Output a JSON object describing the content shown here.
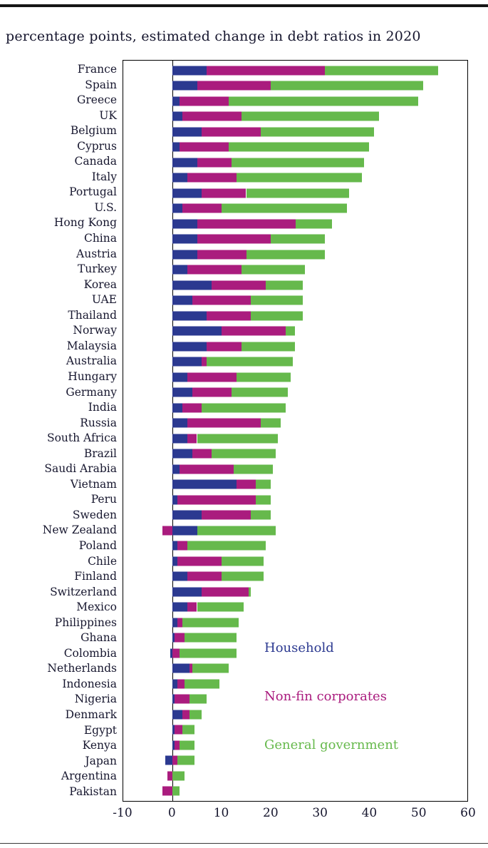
{
  "page": {
    "title": "percentage points, estimated change in debt ratios in 2020"
  },
  "chart_data": {
    "type": "bar",
    "orientation": "horizontal",
    "stacked": true,
    "title": "percentage points, estimated change in debt ratios in 2020",
    "xlabel": "",
    "ylabel": "",
    "xlim": [
      -10,
      60
    ],
    "x_ticks": [
      -10,
      0,
      10,
      20,
      30,
      40,
      50,
      60
    ],
    "grid": false,
    "legend_position": "inside-lower-right",
    "legend": [
      {
        "label": "Household",
        "color": "#2b3990"
      },
      {
        "label": "Non-fin corporates",
        "color": "#aa1c7e"
      },
      {
        "label": "General government",
        "color": "#66b94c"
      }
    ],
    "series_order": [
      "Household",
      "Non-fin corporates",
      "General government"
    ],
    "rows": [
      {
        "label": "France",
        "values": [
          7,
          24,
          23
        ]
      },
      {
        "label": "Spain",
        "values": [
          5,
          15,
          31
        ]
      },
      {
        "label": "Greece",
        "values": [
          1.5,
          10,
          38.5
        ]
      },
      {
        "label": "UK",
        "values": [
          2,
          12,
          28
        ]
      },
      {
        "label": "Belgium",
        "values": [
          6,
          12,
          23
        ]
      },
      {
        "label": "Cyprus",
        "values": [
          1.5,
          10,
          28.5
        ]
      },
      {
        "label": "Canada",
        "values": [
          5,
          7,
          27
        ]
      },
      {
        "label": "Italy",
        "values": [
          3,
          10,
          25.5
        ]
      },
      {
        "label": "Portugal",
        "values": [
          6,
          9,
          21
        ]
      },
      {
        "label": "U.S.",
        "values": [
          2,
          8,
          25.5
        ]
      },
      {
        "label": "Hong Kong",
        "values": [
          5,
          20,
          7.5
        ]
      },
      {
        "label": "China",
        "values": [
          5,
          15,
          11
        ]
      },
      {
        "label": "Austria",
        "values": [
          5,
          10,
          16
        ]
      },
      {
        "label": "Turkey",
        "values": [
          3,
          11,
          13
        ]
      },
      {
        "label": "Korea",
        "values": [
          8,
          11,
          7.5
        ]
      },
      {
        "label": "UAE",
        "values": [
          4,
          12,
          10.5
        ]
      },
      {
        "label": "Thailand",
        "values": [
          7,
          9,
          10.5
        ]
      },
      {
        "label": "Norway",
        "values": [
          10,
          13,
          2
        ]
      },
      {
        "label": "Malaysia",
        "values": [
          7,
          7,
          11
        ]
      },
      {
        "label": "Australia",
        "values": [
          6,
          1,
          17.5
        ]
      },
      {
        "label": "Hungary",
        "values": [
          3,
          10,
          11
        ]
      },
      {
        "label": "Germany",
        "values": [
          4,
          8,
          11.5
        ]
      },
      {
        "label": "India",
        "values": [
          2,
          4,
          17
        ]
      },
      {
        "label": "Russia",
        "values": [
          3,
          15,
          4
        ]
      },
      {
        "label": "South Africa",
        "values": [
          3,
          2,
          16.5
        ]
      },
      {
        "label": "Brazil",
        "values": [
          4,
          4,
          13
        ]
      },
      {
        "label": "Saudi Arabia",
        "values": [
          1.5,
          11,
          8
        ]
      },
      {
        "label": "Vietnam",
        "values": [
          13,
          4,
          3
        ]
      },
      {
        "label": "Peru",
        "values": [
          1,
          16,
          3
        ]
      },
      {
        "label": "Sweden",
        "values": [
          6,
          10,
          4
        ]
      },
      {
        "label": "New Zealand",
        "values": [
          5,
          -2,
          16
        ]
      },
      {
        "label": "Poland",
        "values": [
          1,
          2,
          16
        ]
      },
      {
        "label": "Chile",
        "values": [
          1,
          9,
          8.5
        ]
      },
      {
        "label": "Finland",
        "values": [
          3,
          7,
          8.5
        ]
      },
      {
        "label": "Switzerland",
        "values": [
          6,
          9.5,
          0.5
        ]
      },
      {
        "label": "Mexico",
        "values": [
          3,
          2,
          9.5
        ]
      },
      {
        "label": "Philippines",
        "values": [
          1,
          1,
          11.5
        ]
      },
      {
        "label": "Ghana",
        "values": [
          0.5,
          2,
          10.5
        ]
      },
      {
        "label": "Colombia",
        "values": [
          -0.5,
          1.5,
          11.5
        ]
      },
      {
        "label": "Netherlands",
        "values": [
          3.5,
          0.5,
          7.5
        ]
      },
      {
        "label": "Indonesia",
        "values": [
          1,
          1.5,
          7
        ]
      },
      {
        "label": "Nigeria",
        "values": [
          0.5,
          3,
          3.5
        ]
      },
      {
        "label": "Denmark",
        "values": [
          2,
          1.5,
          2.5
        ]
      },
      {
        "label": "Egypt",
        "values": [
          0.5,
          1.5,
          2.5
        ]
      },
      {
        "label": "Kenya",
        "values": [
          0.5,
          1,
          3
        ]
      },
      {
        "label": "Japan",
        "values": [
          -1.5,
          1,
          3.5
        ]
      },
      {
        "label": "Argentina",
        "values": [
          0,
          -1,
          2.5
        ]
      },
      {
        "label": "Pakistan",
        "values": [
          0,
          -2,
          1.5
        ]
      }
    ]
  }
}
